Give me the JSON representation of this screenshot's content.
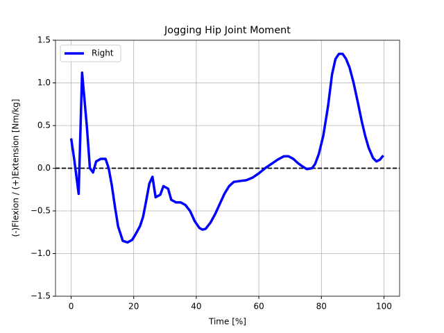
{
  "chart_data": {
    "type": "line",
    "title": "Jogging Hip Joint Moment",
    "xlabel": "Time [%]",
    "ylabel": "(-)Flexion / (+)Extension [Nm/kg]",
    "x": [
      0,
      1,
      2.4,
      3.5,
      5,
      6,
      7,
      8,
      9.5,
      11,
      12,
      13,
      14,
      15,
      16.5,
      18,
      19.5,
      20.5,
      22,
      23,
      24,
      25,
      26,
      27,
      28.5,
      29.5,
      31,
      32,
      33.5,
      35,
      36.5,
      38,
      39.5,
      41,
      42,
      43,
      44.5,
      46,
      47.5,
      49,
      50.5,
      52,
      54,
      56,
      58,
      60,
      62,
      64,
      66,
      68,
      69.5,
      71,
      72.5,
      74,
      75.3,
      77,
      78,
      79.2,
      80.6,
      82.1,
      83.4,
      84.5,
      85.6,
      86.8,
      87.9,
      89,
      90.3,
      91.6,
      92.9,
      94,
      95.1,
      96.5,
      97.6,
      98.7,
      99.8
    ],
    "series": [
      {
        "name": "Right",
        "color": "#0000ff",
        "values": [
          0.35,
          0.1,
          -0.3,
          1.12,
          0.5,
          0.0,
          -0.05,
          0.08,
          0.11,
          0.11,
          0.0,
          -0.2,
          -0.45,
          -0.68,
          -0.85,
          -0.87,
          -0.84,
          -0.78,
          -0.68,
          -0.57,
          -0.38,
          -0.18,
          -0.1,
          -0.34,
          -0.31,
          -0.21,
          -0.24,
          -0.37,
          -0.4,
          -0.4,
          -0.43,
          -0.5,
          -0.62,
          -0.7,
          -0.72,
          -0.71,
          -0.64,
          -0.54,
          -0.42,
          -0.3,
          -0.21,
          -0.16,
          -0.15,
          -0.14,
          -0.11,
          -0.06,
          0.0,
          0.05,
          0.1,
          0.14,
          0.14,
          0.11,
          0.06,
          0.02,
          -0.01,
          0.0,
          0.05,
          0.17,
          0.38,
          0.72,
          1.1,
          1.28,
          1.34,
          1.34,
          1.28,
          1.18,
          1.0,
          0.78,
          0.55,
          0.38,
          0.24,
          0.12,
          0.08,
          0.1,
          0.15
        ]
      }
    ],
    "xlim": [
      -5,
      105
    ],
    "ylim": [
      -1.5,
      1.5
    ],
    "xticks": [
      0,
      20,
      40,
      60,
      80,
      100
    ],
    "yticks": [
      {
        "value": -1.5,
        "label": "−1.5"
      },
      {
        "value": -1.0,
        "label": "−1.0"
      },
      {
        "value": -0.5,
        "label": "−0.5"
      },
      {
        "value": 0,
        "label": "0.0"
      },
      0.5,
      {
        "value": 1.0,
        "label": "1.0"
      },
      1.5
    ],
    "hline": 0,
    "grid": true,
    "legend": "upper left"
  }
}
